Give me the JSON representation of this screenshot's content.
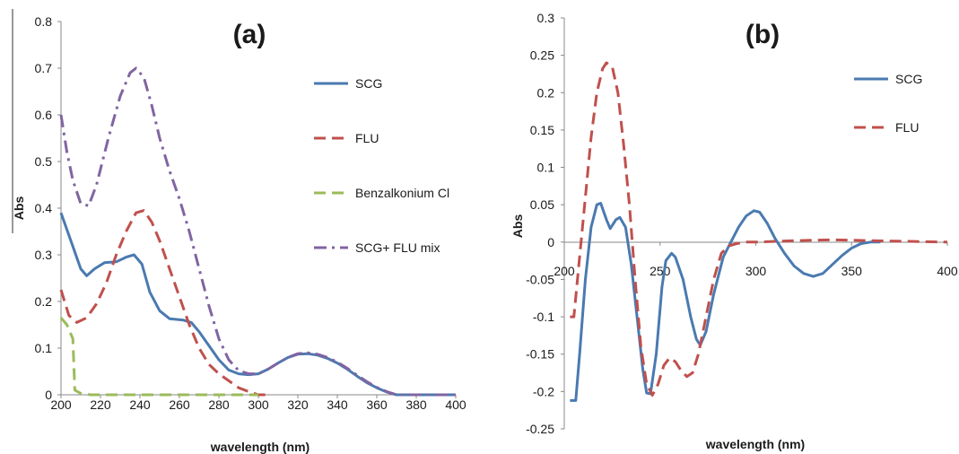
{
  "chart_data": [
    {
      "panel_label": "(a)",
      "type": "line",
      "xlabel": "wavelength (nm)",
      "ylabel": "Abs",
      "xlim": [
        200,
        400
      ],
      "ylim": [
        0,
        0.8
      ],
      "x_ticks": [
        "200",
        "220",
        "240",
        "260",
        "280",
        "300",
        "320",
        "340",
        "360",
        "380",
        "400"
      ],
      "y_ticks": [
        "0",
        "0.1",
        "0.2",
        "0.3",
        "0.4",
        "0.5",
        "0.6",
        "0.7",
        "0.8"
      ],
      "legend_position": "right",
      "series": [
        {
          "name": "SCG",
          "color": "#4a7ab0",
          "style": "solid",
          "points": [
            [
              200,
              0.39
            ],
            [
              205,
              0.33
            ],
            [
              210,
              0.27
            ],
            [
              213,
              0.255
            ],
            [
              217,
              0.27
            ],
            [
              222,
              0.283
            ],
            [
              228,
              0.285
            ],
            [
              233,
              0.295
            ],
            [
              237,
              0.3
            ],
            [
              241,
              0.28
            ],
            [
              245,
              0.22
            ],
            [
              250,
              0.18
            ],
            [
              255,
              0.163
            ],
            [
              262,
              0.16
            ],
            [
              266,
              0.155
            ],
            [
              270,
              0.135
            ],
            [
              275,
              0.105
            ],
            [
              280,
              0.075
            ],
            [
              285,
              0.053
            ],
            [
              290,
              0.045
            ],
            [
              295,
              0.043
            ],
            [
              300,
              0.045
            ],
            [
              305,
              0.055
            ],
            [
              310,
              0.068
            ],
            [
              315,
              0.08
            ],
            [
              320,
              0.087
            ],
            [
              325,
              0.088
            ],
            [
              330,
              0.085
            ],
            [
              335,
              0.078
            ],
            [
              340,
              0.068
            ],
            [
              345,
              0.055
            ],
            [
              350,
              0.04
            ],
            [
              355,
              0.026
            ],
            [
              360,
              0.015
            ],
            [
              365,
              0.006
            ],
            [
              370,
              0.0
            ],
            [
              400,
              0.0
            ]
          ]
        },
        {
          "name": "FLU",
          "color": "#c0504d",
          "style": "dashed",
          "points": [
            [
              200,
              0.225
            ],
            [
              204,
              0.17
            ],
            [
              208,
              0.155
            ],
            [
              213,
              0.165
            ],
            [
              218,
              0.195
            ],
            [
              223,
              0.24
            ],
            [
              228,
              0.3
            ],
            [
              233,
              0.35
            ],
            [
              238,
              0.39
            ],
            [
              242,
              0.395
            ],
            [
              246,
              0.37
            ],
            [
              250,
              0.33
            ],
            [
              255,
              0.27
            ],
            [
              260,
              0.21
            ],
            [
              265,
              0.15
            ],
            [
              270,
              0.1
            ],
            [
              275,
              0.065
            ],
            [
              280,
              0.045
            ],
            [
              285,
              0.03
            ],
            [
              290,
              0.015
            ],
            [
              295,
              0.007
            ],
            [
              300,
              0.0
            ],
            [
              304,
              0.0
            ]
          ]
        },
        {
          "name": "Benzalkonium Cl",
          "color": "#9bbb59",
          "style": "dashed",
          "points": [
            [
              200,
              0.165
            ],
            [
              203,
              0.15
            ],
            [
              206,
              0.12
            ],
            [
              207,
              0.01
            ],
            [
              210,
              0.003
            ],
            [
              215,
              0.0
            ],
            [
              300,
              0.0
            ]
          ]
        },
        {
          "name": "SCG+ FLU mix",
          "color": "#8064a2",
          "style": "dashdot",
          "points": [
            [
              200,
              0.6
            ],
            [
              203,
              0.52
            ],
            [
              206,
              0.46
            ],
            [
              210,
              0.41
            ],
            [
              214,
              0.405
            ],
            [
              218,
              0.45
            ],
            [
              224,
              0.55
            ],
            [
              230,
              0.64
            ],
            [
              235,
              0.69
            ],
            [
              238,
              0.7
            ],
            [
              242,
              0.68
            ],
            [
              246,
              0.62
            ],
            [
              250,
              0.55
            ],
            [
              255,
              0.48
            ],
            [
              260,
              0.42
            ],
            [
              265,
              0.35
            ],
            [
              270,
              0.27
            ],
            [
              275,
              0.19
            ],
            [
              280,
              0.12
            ],
            [
              285,
              0.075
            ],
            [
              290,
              0.052
            ],
            [
              295,
              0.045
            ],
            [
              300,
              0.045
            ],
            [
              305,
              0.055
            ],
            [
              310,
              0.068
            ],
            [
              315,
              0.08
            ],
            [
              320,
              0.088
            ],
            [
              325,
              0.09
            ],
            [
              330,
              0.087
            ],
            [
              335,
              0.08
            ],
            [
              340,
              0.07
            ],
            [
              345,
              0.057
            ],
            [
              350,
              0.042
            ],
            [
              355,
              0.028
            ],
            [
              360,
              0.016
            ],
            [
              365,
              0.007
            ],
            [
              370,
              0.0
            ],
            [
              400,
              0.0
            ]
          ]
        }
      ]
    },
    {
      "panel_label": "(b)",
      "type": "line",
      "xlabel": "wavelength (nm)",
      "ylabel": "Abs",
      "xlim": [
        200,
        400
      ],
      "ylim": [
        -0.25,
        0.3
      ],
      "x_ticks": [
        "200",
        "250",
        "300",
        "350",
        "400"
      ],
      "y_ticks": [
        "-0.25",
        "-0.2",
        "-0.15",
        "-0.1",
        "-0.05",
        "0",
        "0.05",
        "0.1",
        "0.15",
        "0.2",
        "0.25",
        "0.3"
      ],
      "legend_position": "top-right",
      "series": [
        {
          "name": "SCG",
          "color": "#4a7ab0",
          "style": "solid",
          "points": [
            [
              203,
              -0.212
            ],
            [
              206,
              -0.212
            ],
            [
              208,
              -0.15
            ],
            [
              211,
              -0.05
            ],
            [
              214,
              0.02
            ],
            [
              217,
              0.05
            ],
            [
              219,
              0.052
            ],
            [
              222,
              0.03
            ],
            [
              224,
              0.018
            ],
            [
              227,
              0.03
            ],
            [
              229,
              0.033
            ],
            [
              232,
              0.02
            ],
            [
              235,
              -0.03
            ],
            [
              238,
              -0.1
            ],
            [
              241,
              -0.17
            ],
            [
              243,
              -0.202
            ],
            [
              245,
              -0.203
            ],
            [
              248,
              -0.15
            ],
            [
              251,
              -0.06
            ],
            [
              253,
              -0.025
            ],
            [
              256,
              -0.015
            ],
            [
              258,
              -0.02
            ],
            [
              262,
              -0.05
            ],
            [
              266,
              -0.1
            ],
            [
              269,
              -0.13
            ],
            [
              271,
              -0.138
            ],
            [
              274,
              -0.12
            ],
            [
              278,
              -0.07
            ],
            [
              283,
              -0.02
            ],
            [
              287,
              0.0
            ],
            [
              291,
              0.02
            ],
            [
              295,
              0.035
            ],
            [
              299,
              0.042
            ],
            [
              302,
              0.04
            ],
            [
              306,
              0.025
            ],
            [
              310,
              0.005
            ],
            [
              315,
              -0.015
            ],
            [
              320,
              -0.032
            ],
            [
              325,
              -0.042
            ],
            [
              330,
              -0.046
            ],
            [
              335,
              -0.042
            ],
            [
              340,
              -0.03
            ],
            [
              345,
              -0.018
            ],
            [
              350,
              -0.008
            ],
            [
              355,
              -0.002
            ],
            [
              360,
              0.0
            ],
            [
              365,
              0.0
            ]
          ]
        },
        {
          "name": "FLU",
          "color": "#c0504d",
          "style": "dashed",
          "points": [
            [
              203,
              -0.1
            ],
            [
              205,
              -0.1
            ],
            [
              208,
              -0.02
            ],
            [
              211,
              0.06
            ],
            [
              214,
              0.14
            ],
            [
              217,
              0.2
            ],
            [
              220,
              0.232
            ],
            [
              222,
              0.24
            ],
            [
              225,
              0.235
            ],
            [
              228,
              0.2
            ],
            [
              231,
              0.13
            ],
            [
              234,
              0.05
            ],
            [
              237,
              -0.05
            ],
            [
              240,
              -0.14
            ],
            [
              243,
              -0.19
            ],
            [
              246,
              -0.205
            ],
            [
              249,
              -0.19
            ],
            [
              252,
              -0.165
            ],
            [
              255,
              -0.155
            ],
            [
              258,
              -0.16
            ],
            [
              261,
              -0.172
            ],
            [
              264,
              -0.18
            ],
            [
              267,
              -0.175
            ],
            [
              270,
              -0.15
            ],
            [
              274,
              -0.1
            ],
            [
              278,
              -0.05
            ],
            [
              282,
              -0.015
            ],
            [
              286,
              -0.005
            ],
            [
              290,
              -0.002
            ],
            [
              295,
              0.0
            ],
            [
              300,
              0.0
            ],
            [
              320,
              0.002
            ],
            [
              340,
              0.003
            ],
            [
              360,
              0.002
            ],
            [
              380,
              0.001
            ],
            [
              400,
              0.0
            ]
          ]
        }
      ]
    }
  ]
}
